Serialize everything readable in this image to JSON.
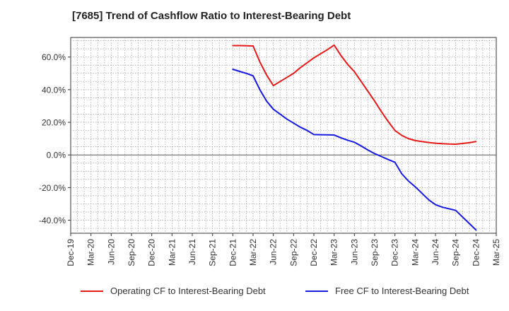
{
  "chart_data": {
    "type": "line",
    "title": "[7685]  Trend of Cashflow Ratio to Interest-Bearing Debt",
    "xlabel": "",
    "ylabel": "",
    "x_ticks": [
      "Dec-19",
      "Mar-20",
      "Jun-20",
      "Sep-20",
      "Dec-20",
      "Mar-21",
      "Jun-21",
      "Sep-21",
      "Dec-21",
      "Mar-22",
      "Jun-22",
      "Sep-22",
      "Dec-22",
      "Mar-23",
      "Jun-23",
      "Sep-23",
      "Dec-23",
      "Mar-24",
      "Jun-24",
      "Sep-24",
      "Dec-24",
      "Mar-25"
    ],
    "y_ticks": [
      "60.0%",
      "40.0%",
      "20.0%",
      "0.0%",
      "-20.0%",
      "-40.0%"
    ],
    "y_tick_values": [
      60,
      40,
      20,
      0,
      -20,
      -40
    ],
    "ylim": [
      -48,
      72
    ],
    "grid": true,
    "legend_position": "bottom",
    "series": [
      {
        "name": "Operating CF to Interest-Bearing Debt",
        "color": "#e31a1c",
        "points": [
          [
            "Dec-21",
            67.0
          ],
          [
            "Jan-22",
            67.0
          ],
          [
            "Feb-22",
            66.9
          ],
          [
            "Mar-22",
            66.8
          ],
          [
            "Apr-22",
            57.0
          ],
          [
            "May-22",
            49.0
          ],
          [
            "Jun-22",
            42.5
          ],
          [
            "Jul-22",
            45.0
          ],
          [
            "Aug-22",
            47.5
          ],
          [
            "Sep-22",
            50.0
          ],
          [
            "Oct-22",
            53.5
          ],
          [
            "Nov-22",
            56.5
          ],
          [
            "Dec-22",
            59.5
          ],
          [
            "Jan-23",
            62.0
          ],
          [
            "Feb-23",
            64.5
          ],
          [
            "Mar-23",
            67.3
          ],
          [
            "Apr-23",
            61.0
          ],
          [
            "May-23",
            55.5
          ],
          [
            "Jun-23",
            51.0
          ],
          [
            "Jul-23",
            45.0
          ],
          [
            "Aug-23",
            39.0
          ],
          [
            "Sep-23",
            33.0
          ],
          [
            "Oct-23",
            26.5
          ],
          [
            "Nov-23",
            20.5
          ],
          [
            "Dec-23",
            15.0
          ],
          [
            "Jan-24",
            12.0
          ],
          [
            "Feb-24",
            10.0
          ],
          [
            "Mar-24",
            8.8
          ],
          [
            "Apr-24",
            8.2
          ],
          [
            "May-24",
            7.6
          ],
          [
            "Jun-24",
            7.2
          ],
          [
            "Jul-24",
            6.9
          ],
          [
            "Aug-24",
            6.7
          ],
          [
            "Sep-24",
            6.6
          ],
          [
            "Oct-24",
            7.0
          ],
          [
            "Nov-24",
            7.5
          ],
          [
            "Dec-24",
            8.2
          ]
        ]
      },
      {
        "name": "Free CF to Interest-Bearing Debt",
        "color": "#1a1adc",
        "points": [
          [
            "Dec-21",
            52.5
          ],
          [
            "Jan-22",
            51.2
          ],
          [
            "Feb-22",
            50.0
          ],
          [
            "Mar-22",
            48.5
          ],
          [
            "Apr-22",
            40.0
          ],
          [
            "May-22",
            33.0
          ],
          [
            "Jun-22",
            28.0
          ],
          [
            "Jul-22",
            25.0
          ],
          [
            "Aug-22",
            22.0
          ],
          [
            "Sep-22",
            19.5
          ],
          [
            "Oct-22",
            17.0
          ],
          [
            "Nov-22",
            15.0
          ],
          [
            "Dec-22",
            12.5
          ],
          [
            "Jan-23",
            12.4
          ],
          [
            "Feb-23",
            12.3
          ],
          [
            "Mar-23",
            12.2
          ],
          [
            "Apr-23",
            10.5
          ],
          [
            "May-23",
            9.0
          ],
          [
            "Jun-23",
            7.8
          ],
          [
            "Jul-23",
            5.5
          ],
          [
            "Aug-23",
            3.0
          ],
          [
            "Sep-23",
            0.8
          ],
          [
            "Oct-23",
            -1.0
          ],
          [
            "Nov-23",
            -2.8
          ],
          [
            "Dec-23",
            -4.5
          ],
          [
            "Jan-24",
            -11.5
          ],
          [
            "Feb-24",
            -16.0
          ],
          [
            "Mar-24",
            -19.5
          ],
          [
            "Apr-24",
            -23.5
          ],
          [
            "May-24",
            -27.5
          ],
          [
            "Jun-24",
            -30.5
          ],
          [
            "Jul-24",
            -32.0
          ],
          [
            "Aug-24",
            -33.0
          ],
          [
            "Sep-24",
            -34.0
          ],
          [
            "Oct-24",
            -38.0
          ],
          [
            "Nov-24",
            -42.0
          ],
          [
            "Dec-24",
            -46.0
          ]
        ]
      }
    ]
  }
}
